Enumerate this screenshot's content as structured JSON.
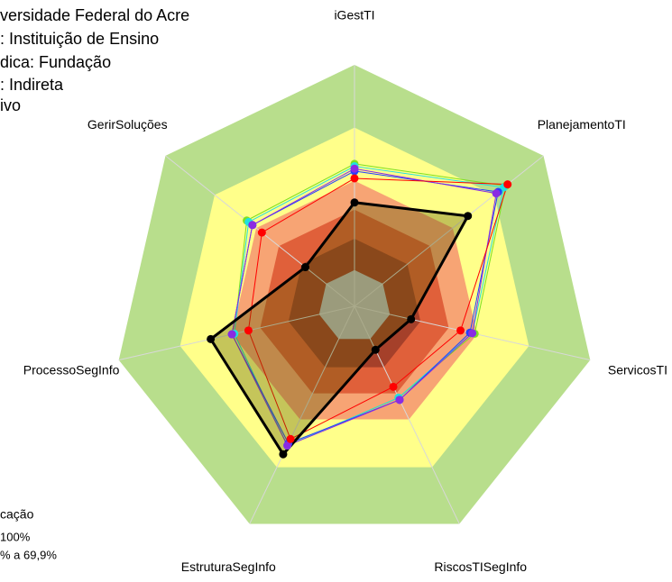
{
  "chart_data": {
    "type": "radar",
    "texts": [
      "versidade Federal do Acre",
      ": Instituição de Ensino",
      "dica: Fundação",
      ": Indireta",
      "ivo"
    ],
    "legend_texts": [
      "cação",
      "100%",
      "% a 69,9%"
    ],
    "categories": [
      "iGestTI",
      "PlanejamentoTI",
      "ServicosTI",
      "RiscosTISegInfo",
      "EstruturaSegInfo",
      "ProcessoSegInfo",
      "GerirSoluções"
    ],
    "rlim": [
      0,
      100
    ],
    "bands": [
      {
        "value": 100,
        "color": "#b8de8c"
      },
      {
        "value": 74,
        "color": "#ffff8a"
      },
      {
        "value": 52,
        "color": "#f7a474"
      },
      {
        "value": 40,
        "color": "#e0603a"
      },
      {
        "value": 28,
        "color": "#a5402a"
      },
      {
        "value": 15,
        "color": "#bfbfbf"
      }
    ],
    "series": [
      {
        "color": "#7ee020",
        "values": [
          59,
          80,
          51,
          42,
          64,
          51,
          57
        ]
      },
      {
        "color": "#20e0e0",
        "values": [
          58,
          79,
          50,
          42,
          64,
          51,
          56
        ]
      },
      {
        "color": "#2040ff",
        "values": [
          56,
          76,
          49,
          43,
          63,
          52,
          54
        ]
      },
      {
        "color": "#8a2be2",
        "values": [
          57,
          75,
          50,
          43,
          64,
          52,
          54
        ]
      },
      {
        "color": "#ff0000",
        "values": [
          53,
          81,
          45,
          37,
          61,
          45,
          49
        ]
      },
      {
        "color": "#000000",
        "fill": "rgba(90,90,0,0.35)",
        "values": [
          43,
          60,
          24,
          20,
          68,
          61,
          26
        ]
      }
    ]
  }
}
